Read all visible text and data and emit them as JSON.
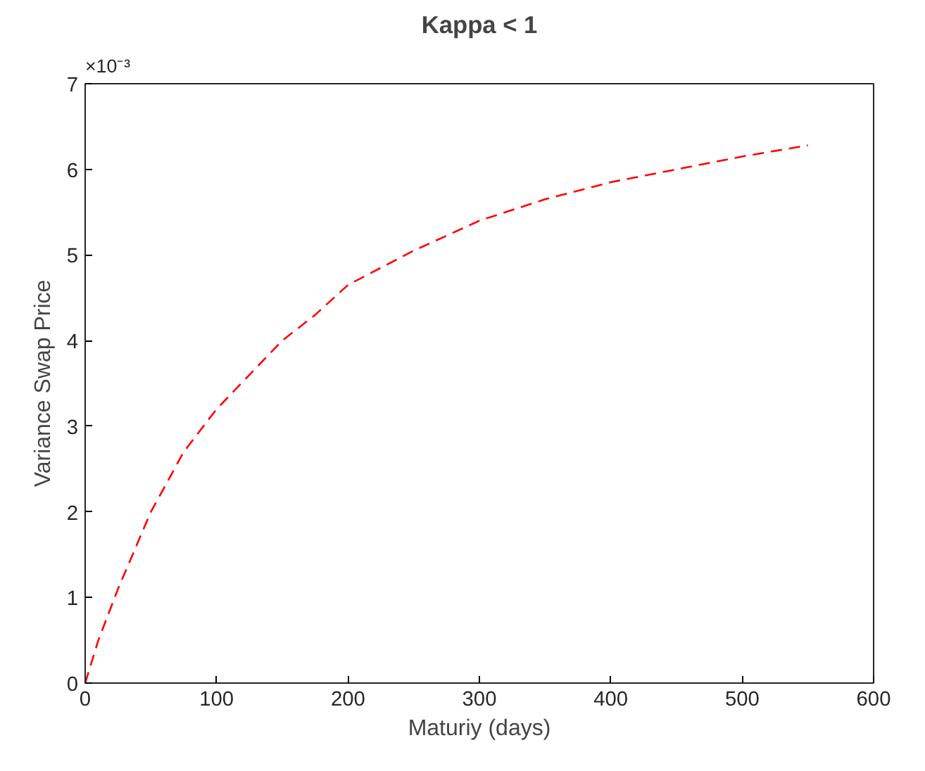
{
  "chart_data": {
    "type": "line",
    "title": "Kappa < 1",
    "xlabel": "Maturiy (days)",
    "ylabel": "Variance Swap Price",
    "annotations": [
      "×10⁻³"
    ],
    "x": [
      0,
      5,
      10,
      25,
      50,
      75,
      100,
      125,
      150,
      175,
      200,
      250,
      300,
      350,
      400,
      450,
      500,
      550
    ],
    "series": [
      {
        "color": "#ff0000",
        "values": [
          0,
          0.25,
          0.5,
          1.1,
          2.0,
          2.7,
          3.2,
          3.6,
          4.0,
          4.3,
          4.65,
          5.05,
          5.4,
          5.65,
          5.85,
          6.0,
          6.15,
          6.28
        ]
      }
    ],
    "line_style": "dashed",
    "marker": "none",
    "xlim": [
      0,
      600
    ],
    "xticks": [
      0,
      100,
      200,
      300,
      400,
      500,
      600
    ],
    "ylim": [
      0,
      7
    ],
    "yticks": [
      0,
      1,
      2,
      3,
      4,
      5,
      6,
      7
    ]
  }
}
